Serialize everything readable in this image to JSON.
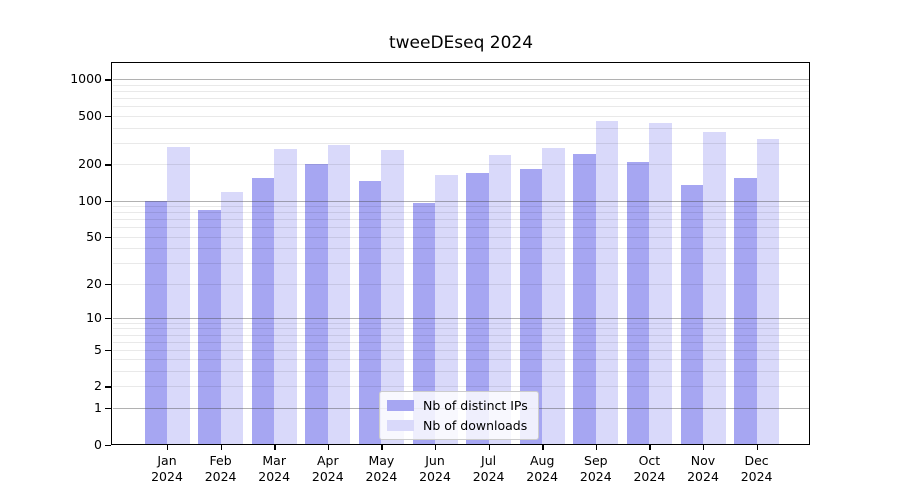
{
  "chart_data": {
    "type": "bar",
    "title": "tweeDEseq 2024",
    "year": "2024",
    "categories": [
      "Jan",
      "Feb",
      "Mar",
      "Apr",
      "May",
      "Jun",
      "Jul",
      "Aug",
      "Sep",
      "Oct",
      "Nov",
      "Dec"
    ],
    "series": [
      {
        "name": "Nb of distinct IPs",
        "color": "#a6a6f2",
        "values": [
          100,
          84,
          153,
          201,
          146,
          96,
          168,
          182,
          242,
          208,
          134,
          155
        ]
      },
      {
        "name": "Nb of downloads",
        "color": "#d9d9fa",
        "values": [
          278,
          118,
          268,
          290,
          261,
          163,
          236,
          272,
          452,
          435,
          366,
          323
        ]
      }
    ],
    "xlabel": "",
    "ylabel": "",
    "yscale": "log1p",
    "y_ticks": [
      0,
      1,
      2,
      5,
      10,
      20,
      50,
      100,
      200,
      500,
      1000
    ],
    "ylim": [
      0,
      1360
    ],
    "grid": "horizontal major and minor gridlines, drawn over bars",
    "legend_position": "bottom-center inside plot"
  }
}
